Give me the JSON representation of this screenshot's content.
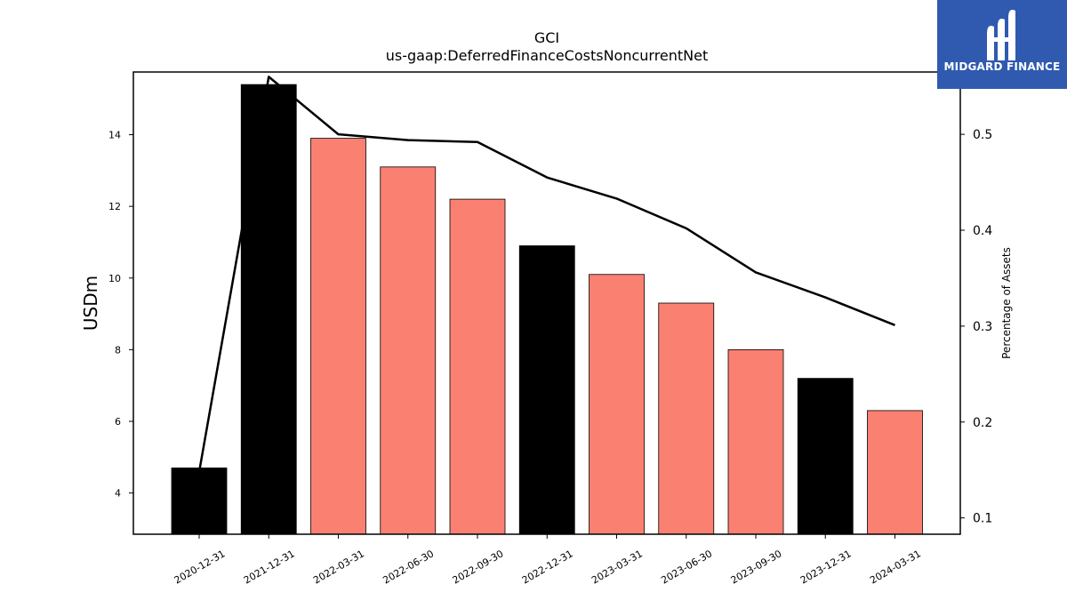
{
  "chart_data": {
    "type": "bar",
    "title": "GCI",
    "subtitle": "us-gaap:DeferredFinanceCostsNoncurrentNet",
    "ylabel": "USDm",
    "y2label": "Percentage of Assets",
    "categories": [
      "2020-12-31",
      "2021-12-31",
      "2022-03-31",
      "2022-06-30",
      "2022-09-30",
      "2022-12-31",
      "2023-03-31",
      "2023-06-30",
      "2023-09-30",
      "2023-12-31",
      "2024-03-31"
    ],
    "values": [
      4.7,
      15.4,
      13.9,
      13.1,
      12.2,
      10.9,
      10.1,
      9.3,
      8.0,
      7.2,
      6.3
    ],
    "bar_colors": [
      "#000000",
      "#000000",
      "#fa8072",
      "#fa8072",
      "#fa8072",
      "#000000",
      "#fa8072",
      "#fa8072",
      "#fa8072",
      "#000000",
      "#fa8072"
    ],
    "line_series": {
      "values": [
        0.148,
        0.56,
        0.5,
        0.494,
        0.492,
        0.455,
        0.433,
        0.402,
        0.356,
        0.33,
        0.301
      ]
    },
    "ylim": [
      2.85,
      15.75
    ],
    "y2lim": [
      0.083,
      0.565
    ],
    "yticks": [
      4,
      6,
      8,
      10,
      12,
      14
    ],
    "y2ticks": [
      0.1,
      0.2,
      0.3,
      0.4,
      0.5
    ]
  },
  "logo": {
    "text": "MIDGARD FINANCE"
  },
  "colors": {
    "logo_bg": "#2f5ab0",
    "line": "#000000",
    "axis": "#000000"
  }
}
